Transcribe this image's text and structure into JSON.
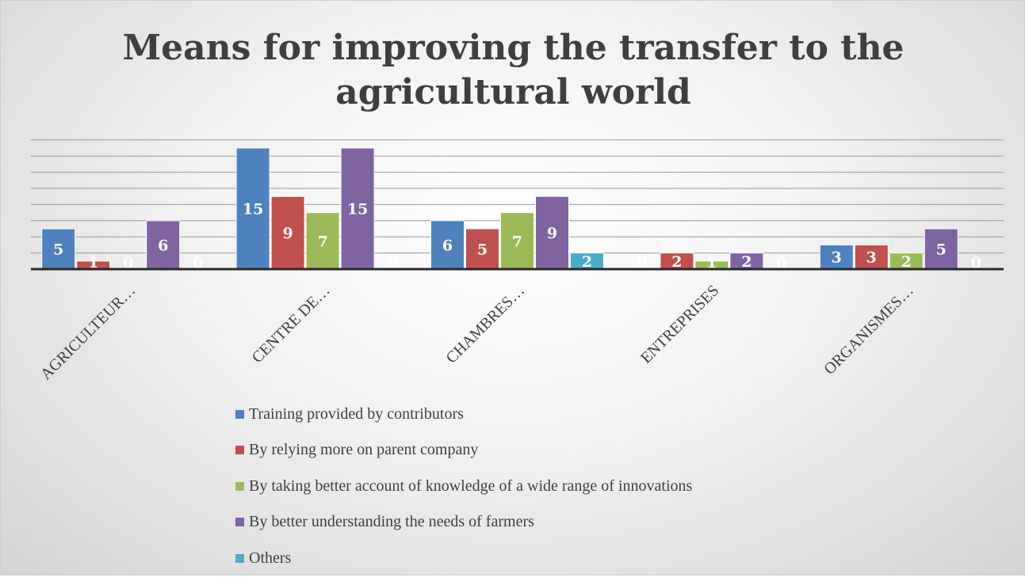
{
  "chart_data": {
    "type": "bar",
    "title": [
      "Means for improving the transfer to the",
      "agricultural world"
    ],
    "categories": [
      "AGRICULTEUR…",
      "CENTRE DE…",
      "CHAMBRES…",
      "ENTREPRISES",
      "ORGANISMES…"
    ],
    "series": [
      {
        "name": "Training provided by contributors",
        "color": "#4f81bd",
        "values": [
          5,
          15,
          6,
          0,
          3
        ]
      },
      {
        "name": "By relying more on parent company",
        "color": "#c0504d",
        "values": [
          1,
          9,
          5,
          2,
          3
        ]
      },
      {
        "name": "By taking better account of knowledge of a wide range of innovations",
        "color": "#9bbb59",
        "values": [
          0,
          7,
          7,
          1,
          2
        ]
      },
      {
        "name": "By better understanding the needs of farmers",
        "color": "#8064a2",
        "values": [
          6,
          15,
          9,
          2,
          5
        ]
      },
      {
        "name": "Others",
        "color": "#4bacc6",
        "values": [
          0,
          0,
          2,
          0,
          0
        ]
      }
    ],
    "ylim": [
      0,
      16
    ],
    "grid": true,
    "data_labels": true,
    "legend_position": "bottom"
  }
}
